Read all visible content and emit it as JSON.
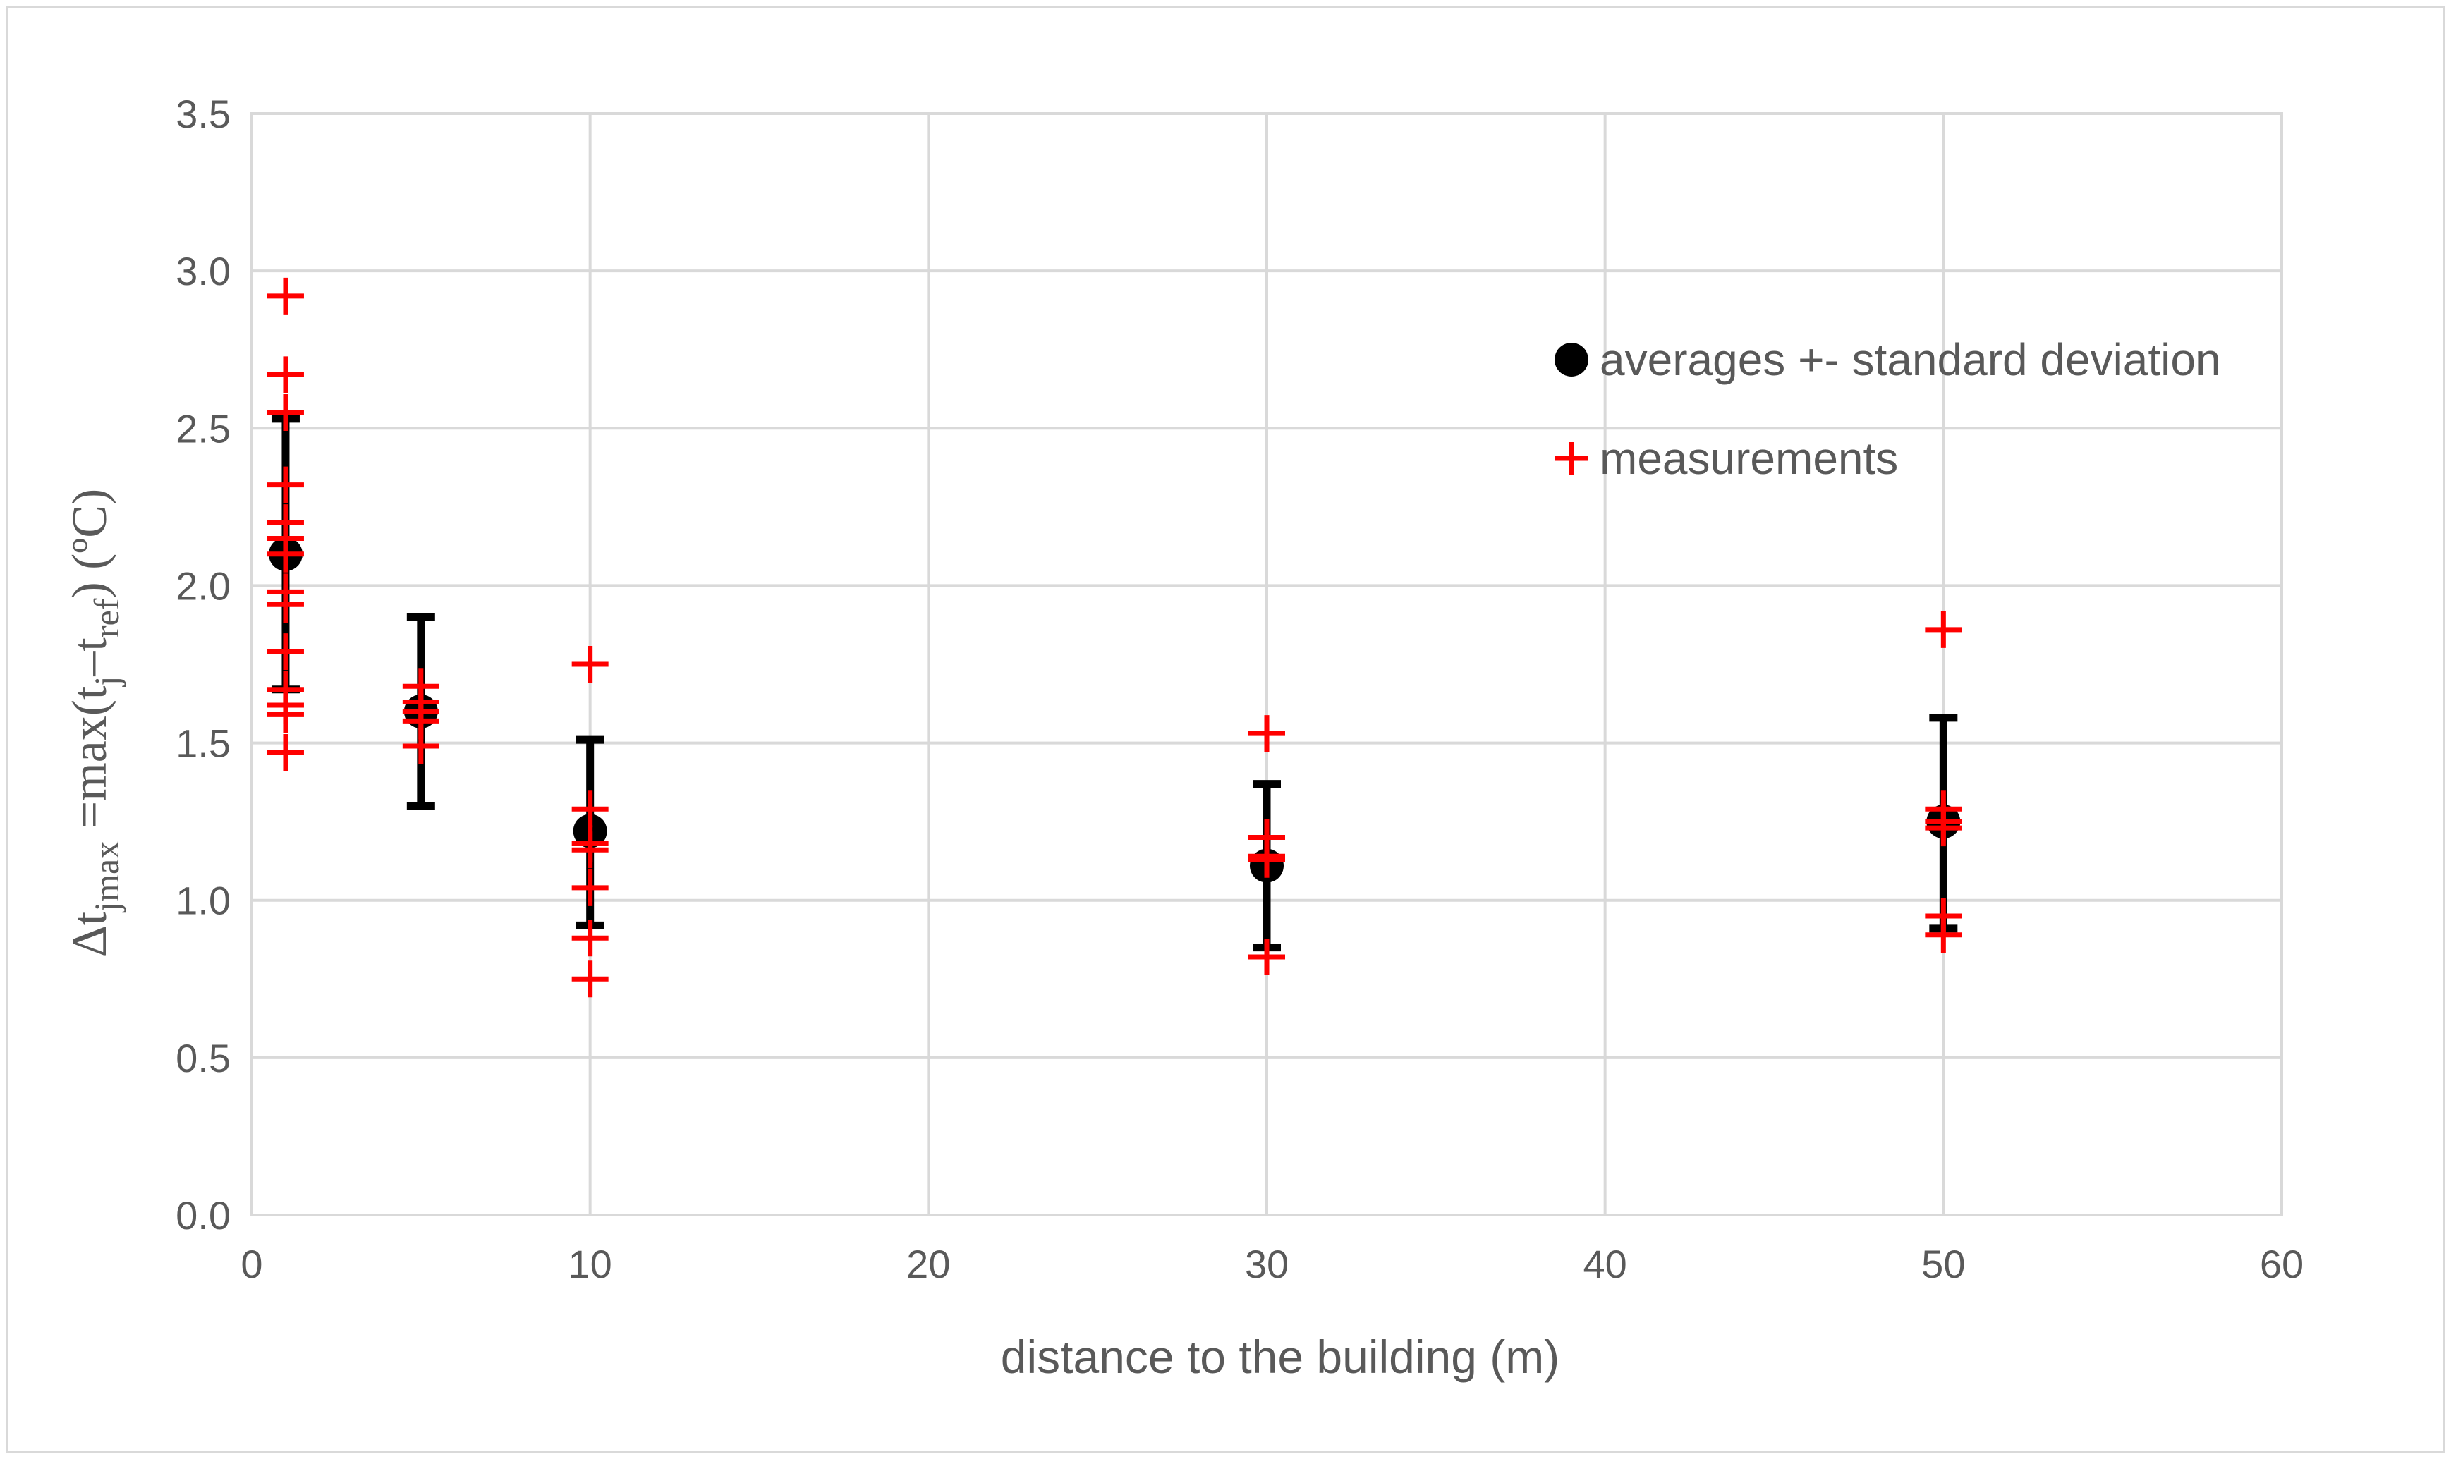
{
  "chart_data": {
    "type": "scatter",
    "title": "",
    "xlabel": "distance to the building (m)",
    "ylabel": {
      "prefix": "Δt",
      "prefix_sub": "jmax",
      "middle": " =max(t",
      "middle_sub": "j",
      "dash": "–t",
      "dash_sub": "ref",
      "suffix": ") (ºC)"
    },
    "xlim": [
      0,
      60
    ],
    "ylim": [
      0,
      3.5
    ],
    "x_ticks": [
      "0",
      "10",
      "20",
      "30",
      "40",
      "50",
      "60"
    ],
    "y_ticks": [
      "0.0",
      "0.5",
      "1.0",
      "1.5",
      "2.0",
      "2.5",
      "3.0",
      "3.5"
    ],
    "grid": true,
    "legend_position": "top-right",
    "series": [
      {
        "name": "averages +- standard deviation",
        "marker": "circle",
        "color": "#000000",
        "points": [
          {
            "x": 1,
            "y": 2.1,
            "err_low": 1.67,
            "err_high": 2.53
          },
          {
            "x": 5,
            "y": 1.6,
            "err_low": 1.3,
            "err_high": 1.9
          },
          {
            "x": 10,
            "y": 1.22,
            "err_low": 0.92,
            "err_high": 1.51
          },
          {
            "x": 30,
            "y": 1.11,
            "err_low": 0.85,
            "err_high": 1.37
          },
          {
            "x": 50,
            "y": 1.25,
            "err_low": 0.91,
            "err_high": 1.58
          }
        ]
      },
      {
        "name": "measurements",
        "marker": "plus",
        "color": "#ff0000",
        "points": [
          {
            "x": 1,
            "y": 2.92
          },
          {
            "x": 1,
            "y": 2.67
          },
          {
            "x": 1,
            "y": 2.55
          },
          {
            "x": 1,
            "y": 2.32
          },
          {
            "x": 1,
            "y": 2.2
          },
          {
            "x": 1,
            "y": 2.15
          },
          {
            "x": 1,
            "y": 2.1
          },
          {
            "x": 1,
            "y": 1.98
          },
          {
            "x": 1,
            "y": 1.94
          },
          {
            "x": 1,
            "y": 1.79
          },
          {
            "x": 1,
            "y": 1.67
          },
          {
            "x": 1,
            "y": 1.62
          },
          {
            "x": 1,
            "y": 1.59
          },
          {
            "x": 1,
            "y": 1.47
          },
          {
            "x": 5,
            "y": 1.68
          },
          {
            "x": 5,
            "y": 1.63
          },
          {
            "x": 5,
            "y": 1.6
          },
          {
            "x": 5,
            "y": 1.57
          },
          {
            "x": 5,
            "y": 1.49
          },
          {
            "x": 10,
            "y": 1.75
          },
          {
            "x": 10,
            "y": 1.29
          },
          {
            "x": 10,
            "y": 1.18
          },
          {
            "x": 10,
            "y": 1.16
          },
          {
            "x": 10,
            "y": 1.04
          },
          {
            "x": 10,
            "y": 0.88
          },
          {
            "x": 10,
            "y": 0.75
          },
          {
            "x": 30,
            "y": 1.53
          },
          {
            "x": 30,
            "y": 1.2
          },
          {
            "x": 30,
            "y": 1.14
          },
          {
            "x": 30,
            "y": 1.13
          },
          {
            "x": 30,
            "y": 0.82
          },
          {
            "x": 50,
            "y": 1.86
          },
          {
            "x": 50,
            "y": 1.29
          },
          {
            "x": 50,
            "y": 1.25
          },
          {
            "x": 50,
            "y": 1.23
          },
          {
            "x": 50,
            "y": 0.95
          },
          {
            "x": 50,
            "y": 0.89
          }
        ]
      }
    ]
  }
}
